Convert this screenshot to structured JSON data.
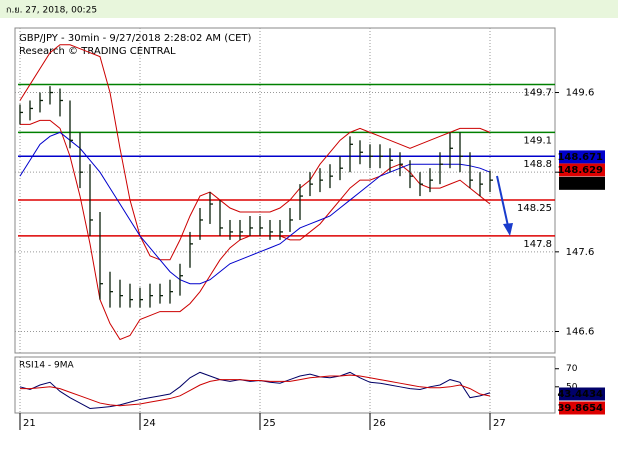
{
  "header": "ก.ย. 27, 2018, 00:25",
  "chart_data": [
    {
      "type": "ohlc",
      "title": "GBP/JPY - 30min - 9/27/2018 2:28:02 AM (CET)",
      "subtitle": "Research © TRADING CENTRAL",
      "categories": [
        "21",
        null,
        null,
        null,
        null,
        null,
        null,
        null,
        null,
        null,
        null,
        null,
        "24",
        null,
        null,
        null,
        null,
        null,
        null,
        null,
        null,
        null,
        null,
        null,
        "25",
        null,
        null,
        null,
        null,
        null,
        null,
        null,
        null,
        null,
        null,
        "26",
        null,
        null,
        null,
        null,
        null,
        null,
        null,
        null,
        null,
        null,
        null,
        "27"
      ],
      "high": [
        149.45,
        149.5,
        149.6,
        149.68,
        149.65,
        149.5,
        149.1,
        148.7,
        148.1,
        147.35,
        147.25,
        147.2,
        147.15,
        147.2,
        147.2,
        147.25,
        147.45,
        147.85,
        148.15,
        148.35,
        148.25,
        148.0,
        148.0,
        148.05,
        148.05,
        148.0,
        148.0,
        148.15,
        148.45,
        148.6,
        148.65,
        148.7,
        148.8,
        149.05,
        149.0,
        148.95,
        148.95,
        148.9,
        148.85,
        148.75,
        148.6,
        148.65,
        148.85,
        149.1,
        149.1,
        148.85,
        148.6,
        148.62
      ],
      "low": [
        149.2,
        149.25,
        149.35,
        149.45,
        149.3,
        148.9,
        148.4,
        147.8,
        147.0,
        146.9,
        146.9,
        146.9,
        146.9,
        146.9,
        146.95,
        146.95,
        147.05,
        147.4,
        147.75,
        147.95,
        147.8,
        147.75,
        147.75,
        147.8,
        147.8,
        147.75,
        147.75,
        147.85,
        148.0,
        148.3,
        148.35,
        148.4,
        148.5,
        148.6,
        148.7,
        148.65,
        148.65,
        148.6,
        148.55,
        148.4,
        148.3,
        148.35,
        148.45,
        148.65,
        148.6,
        148.4,
        148.3,
        148.35
      ],
      "close": [
        149.35,
        149.4,
        149.5,
        149.6,
        149.5,
        149.0,
        148.6,
        148.0,
        147.2,
        147.1,
        147.05,
        147.0,
        147.0,
        147.05,
        147.05,
        147.1,
        147.3,
        147.7,
        148.0,
        148.2,
        147.9,
        147.85,
        147.85,
        147.9,
        147.9,
        147.85,
        147.85,
        148.0,
        148.3,
        148.45,
        148.5,
        148.55,
        148.65,
        148.95,
        148.85,
        148.8,
        148.8,
        148.75,
        148.7,
        148.55,
        148.45,
        148.5,
        148.7,
        148.9,
        148.8,
        148.5,
        148.45,
        148.5
      ],
      "bar_color": "#0a1f0a",
      "series": [
        {
          "color": "#cc0000",
          "values": [
            149.5,
            149.7,
            149.9,
            150.1,
            150.2,
            150.2,
            150.15,
            150.1,
            150.05,
            149.6,
            148.9,
            148.25,
            147.8,
            147.55,
            147.5,
            147.5,
            147.75,
            148.05,
            148.3,
            148.35,
            148.25,
            148.15,
            148.1,
            148.1,
            148.1,
            148.1,
            148.15,
            148.25,
            148.4,
            148.5,
            148.7,
            148.85,
            149.0,
            149.1,
            149.15,
            149.1,
            149.05,
            149.0,
            148.95,
            148.9,
            148.95,
            149.0,
            149.05,
            149.1,
            149.15,
            149.15,
            149.15,
            149.1
          ]
        },
        {
          "color": "#cc0000",
          "values": [
            149.2,
            149.2,
            149.25,
            149.25,
            149.15,
            148.8,
            148.3,
            147.7,
            147.0,
            146.7,
            146.5,
            146.55,
            146.75,
            146.8,
            146.85,
            146.85,
            146.85,
            146.95,
            147.1,
            147.3,
            147.5,
            147.65,
            147.75,
            147.8,
            147.8,
            147.8,
            147.8,
            147.75,
            147.75,
            147.85,
            147.95,
            148.1,
            148.25,
            148.4,
            148.5,
            148.5,
            148.55,
            148.65,
            148.7,
            148.6,
            148.45,
            148.4,
            148.4,
            148.45,
            148.5,
            148.4,
            148.3,
            148.2
          ]
        },
        {
          "color": "#0000cc",
          "values": [
            148.55,
            148.75,
            148.95,
            149.05,
            149.1,
            149.0,
            148.9,
            148.75,
            148.6,
            148.4,
            148.2,
            148.0,
            147.8,
            147.65,
            147.5,
            147.35,
            147.25,
            147.2,
            147.2,
            147.25,
            147.35,
            147.45,
            147.5,
            147.55,
            147.6,
            147.65,
            147.7,
            147.8,
            147.9,
            147.95,
            148.0,
            148.05,
            148.15,
            148.25,
            148.35,
            148.45,
            148.55,
            148.6,
            148.65,
            148.7,
            148.7,
            148.7,
            148.7,
            148.7,
            148.7,
            148.68,
            148.65,
            148.6
          ]
        }
      ],
      "levels": [
        {
          "value": 149.7,
          "color": "#008000"
        },
        {
          "value": 149.1,
          "color": "#008000"
        },
        {
          "value": 148.8,
          "color": "#0000cc"
        },
        {
          "value": 148.25,
          "color": "#dd0000"
        },
        {
          "value": 147.8,
          "color": "#dd0000"
        }
      ],
      "price_boxes": [
        {
          "value": 148.671,
          "color": "#0000cc"
        },
        {
          "value": 148.629,
          "color": "#dd0000"
        },
        {
          "value": 148.46,
          "color": "#000000"
        }
      ],
      "ylim": [
        146.33,
        150.41
      ],
      "yticks": [
        149.6,
        148.6,
        147.6,
        146.6
      ],
      "grid": true
    },
    {
      "type": "line",
      "title": "RSI14 - 9MA",
      "series": [
        {
          "color": "#000066",
          "values": [
            50,
            47,
            52,
            55,
            45,
            38,
            32,
            26,
            27,
            28,
            30,
            33,
            36,
            38,
            40,
            42,
            50,
            60,
            66,
            62,
            58,
            56,
            58,
            56,
            57,
            55,
            54,
            58,
            62,
            64,
            61,
            60,
            62,
            66,
            60,
            55,
            54,
            52,
            50,
            48,
            47,
            50,
            52,
            58,
            55,
            38,
            40,
            43.4434
          ]
        },
        {
          "color": "#cc0000",
          "values": [
            48,
            48,
            49,
            50,
            48,
            44,
            40,
            36,
            32,
            30,
            29,
            30,
            31,
            33,
            35,
            37,
            40,
            46,
            52,
            56,
            58,
            58,
            58,
            57,
            57,
            56,
            56,
            56,
            58,
            60,
            61,
            62,
            62,
            63,
            62,
            60,
            58,
            56,
            54,
            52,
            50,
            49,
            49,
            50,
            52,
            48,
            42,
            39.8654
          ]
        }
      ],
      "ylim": [
        21,
        83
      ],
      "yticks": [
        70,
        50
      ]
    }
  ]
}
